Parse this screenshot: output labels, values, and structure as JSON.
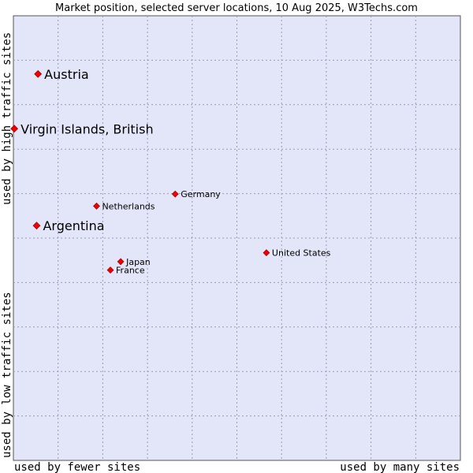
{
  "chart_data": {
    "type": "scatter",
    "title": "Market position, selected server locations, 10 Aug 2025, W3Techs.com",
    "xlabel_left": "used by fewer sites",
    "xlabel_right": "used by many sites",
    "ylabel_top": "used by high traffic sites",
    "ylabel_bottom": "used by low traffic sites",
    "xlim": [
      0,
      100
    ],
    "ylim": [
      0,
      100
    ],
    "grid": true,
    "point_color": "#ee0000",
    "plot_background": "#e2e6f8",
    "grid_color": "#9a9ab8",
    "points": [
      {
        "name": "Austria",
        "x": 5.5,
        "y": 86.9,
        "emphasis": "large"
      },
      {
        "name": "Virgin Islands, British",
        "x": 0.2,
        "y": 74.6,
        "emphasis": "large"
      },
      {
        "name": "Argentina",
        "x": 5.2,
        "y": 52.8,
        "emphasis": "large"
      },
      {
        "name": "Germany",
        "x": 36.2,
        "y": 59.9,
        "emphasis": "small"
      },
      {
        "name": "Netherlands",
        "x": 18.6,
        "y": 57.2,
        "emphasis": "small"
      },
      {
        "name": "United States",
        "x": 56.6,
        "y": 46.7,
        "emphasis": "small"
      },
      {
        "name": "Japan",
        "x": 24.0,
        "y": 44.7,
        "emphasis": "small"
      },
      {
        "name": "France",
        "x": 21.7,
        "y": 42.8,
        "emphasis": "small"
      }
    ]
  }
}
